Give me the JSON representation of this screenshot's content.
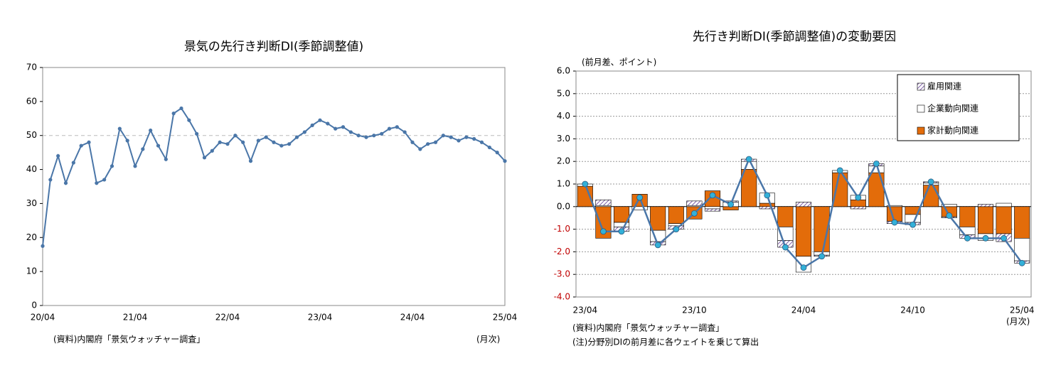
{
  "chart_data": [
    {
      "type": "line",
      "title": "景気の先行き判断DI(季節調整値)",
      "categories": [
        "20/04",
        null,
        null,
        null,
        null,
        null,
        null,
        null,
        null,
        null,
        null,
        null,
        "21/04",
        null,
        null,
        null,
        null,
        null,
        null,
        null,
        null,
        null,
        null,
        null,
        "22/04",
        null,
        null,
        null,
        null,
        null,
        null,
        null,
        null,
        null,
        null,
        null,
        "23/04",
        null,
        null,
        null,
        null,
        null,
        null,
        null,
        null,
        null,
        null,
        null,
        "24/04",
        null,
        null,
        null,
        null,
        null,
        null,
        null,
        null,
        null,
        null,
        null,
        "25/04"
      ],
      "series": [
        {
          "color": "#4a76a8",
          "values": [
            17.5,
            37,
            44,
            36,
            42,
            47,
            48,
            36,
            37,
            41,
            52,
            48.5,
            41,
            46,
            51.5,
            47,
            43,
            56.5,
            58,
            54.5,
            50.5,
            43.5,
            45.5,
            48,
            47.5,
            50,
            48,
            42.5,
            48.5,
            49.5,
            48,
            47,
            47.5,
            49.5,
            51,
            53,
            54.5,
            53.5,
            52,
            52.5,
            51,
            50,
            49.5,
            50,
            50.5,
            52,
            52.5,
            51,
            48,
            46,
            47.5,
            48,
            50,
            49.5,
            48.5,
            49.5,
            49,
            48,
            46.5,
            45,
            42.5
          ]
        }
      ],
      "ylim": [
        0,
        70
      ],
      "yticks": [
        0,
        10,
        20,
        30,
        40,
        50,
        60,
        70
      ],
      "grid": false,
      "reference_line": 50,
      "note": "(資料)内閣府「景気ウォッチャー調査」",
      "x_unit": "(月次)"
    },
    {
      "type": "bar",
      "stacked": true,
      "title": "先行き判断DI(季節調整値)の変動要因",
      "y_unit": "(前月差、ポイント)",
      "categories": [
        "23/04",
        null,
        null,
        null,
        null,
        null,
        "23/10",
        null,
        null,
        null,
        null,
        null,
        "24/04",
        null,
        null,
        null,
        null,
        null,
        "24/10",
        null,
        null,
        null,
        null,
        null,
        "25/04"
      ],
      "series": [
        {
          "name": "家計動向関連",
          "color": "#e36c0a",
          "values": [
            0.9,
            -1.4,
            -0.7,
            0.55,
            -1.05,
            -0.75,
            -0.55,
            0.7,
            -0.15,
            1.65,
            0.15,
            -0.9,
            -2.2,
            -2.0,
            1.5,
            0.3,
            1.5,
            -0.65,
            -0.35,
            0.95,
            -0.45,
            -0.9,
            -1.2,
            -1.2,
            -1.4
          ]
        },
        {
          "name": "企業動向関連",
          "color": "#ffffff",
          "values": [
            0.1,
            0.05,
            -0.2,
            -0.15,
            -0.5,
            -0.1,
            0.05,
            -0.1,
            0.2,
            0.35,
            0.45,
            -0.6,
            -0.7,
            -0.15,
            0.1,
            0.2,
            0.3,
            0.05,
            -0.35,
            0.1,
            0.1,
            -0.35,
            -0.3,
            0.15,
            -1.0
          ]
        },
        {
          "name": "雇用関連",
          "color": "#7f5fa8",
          "hatched": true,
          "values": [
            0,
            0.25,
            -0.2,
            0,
            -0.15,
            -0.15,
            0.2,
            -0.1,
            0.05,
            0.1,
            -0.1,
            -0.3,
            0.2,
            -0.05,
            0,
            -0.1,
            0.1,
            -0.1,
            -0.1,
            0.05,
            -0.05,
            -0.15,
            0.1,
            -0.35,
            -0.1
          ]
        }
      ],
      "total": {
        "color": "#4a76a8",
        "marker_color": "#33b0d8",
        "values": [
          1.0,
          -1.1,
          -1.1,
          0.4,
          -1.7,
          -1.0,
          -0.3,
          0.5,
          0.1,
          2.1,
          0.5,
          -1.8,
          -2.7,
          -2.2,
          1.6,
          0.4,
          1.9,
          -0.7,
          -0.8,
          1.1,
          -0.4,
          -1.4,
          -1.4,
          -1.4,
          -2.5
        ]
      },
      "ylim": [
        -4,
        6
      ],
      "yticks": [
        {
          "value": -4,
          "label": "-4.0"
        },
        {
          "value": -3,
          "label": "-3.0"
        },
        {
          "value": -2,
          "label": "-2.0"
        },
        {
          "value": -1,
          "label": "-1.0"
        },
        {
          "value": 0,
          "label": "0.0"
        },
        {
          "value": 1,
          "label": "1.0"
        },
        {
          "value": 2,
          "label": "2.0"
        },
        {
          "value": 3,
          "label": "3.0"
        },
        {
          "value": 4,
          "label": "4.0"
        },
        {
          "value": 5,
          "label": "5.0"
        },
        {
          "value": 6,
          "label": "6.0"
        }
      ],
      "grid": true,
      "negative_tick_color": "#c00000",
      "legend": "upper right",
      "x_unit": "(月次)",
      "notes": [
        "(資料)内閣府「景気ウォッチャー調査」",
        "(注)分野別DIの前月差に各ウェイトを乗じて算出"
      ]
    }
  ]
}
